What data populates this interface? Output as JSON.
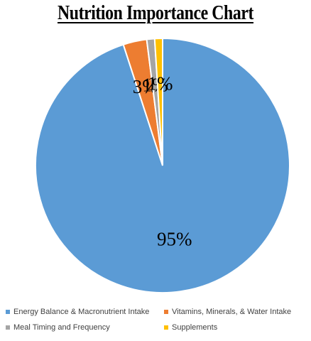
{
  "chart_data": {
    "type": "pie",
    "title": "Nutrition Importance Chart",
    "slices": [
      {
        "name": "Energy Balance & Macronutrient Intake",
        "value": 95,
        "label": "95%",
        "color": "#5b9bd5"
      },
      {
        "name": "Vitamins, Minerals, & Water Intake",
        "value": 3,
        "label": "3%",
        "color": "#ed7d31"
      },
      {
        "name": "Meal Timing and Frequency",
        "value": 1,
        "label": "1%",
        "color": "#a5a5a5"
      },
      {
        "name": "Supplements",
        "value": 1,
        "label": "1%",
        "color": "#ffc000"
      }
    ],
    "legend_position": "bottom"
  }
}
